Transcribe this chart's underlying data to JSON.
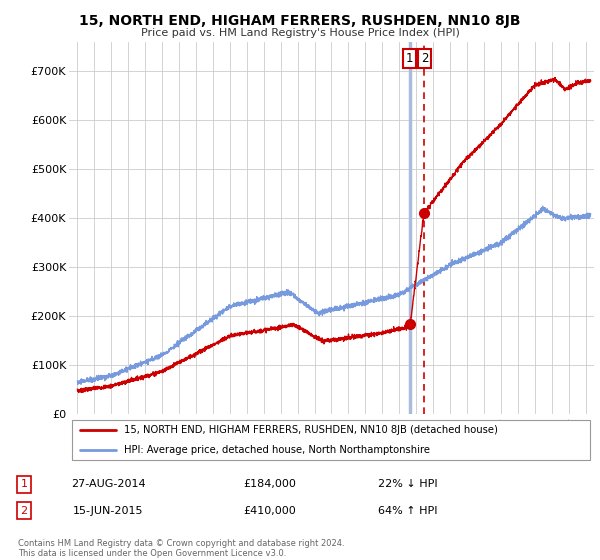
{
  "title": "15, NORTH END, HIGHAM FERRERS, RUSHDEN, NN10 8JB",
  "subtitle": "Price paid vs. HM Land Registry's House Price Index (HPI)",
  "ylabel_ticks": [
    "£0",
    "£100K",
    "£200K",
    "£300K",
    "£400K",
    "£500K",
    "£600K",
    "£700K"
  ],
  "ytick_values": [
    0,
    100000,
    200000,
    300000,
    400000,
    500000,
    600000,
    700000
  ],
  "ylim": [
    0,
    760000
  ],
  "xlim_start": 1994.5,
  "xlim_end": 2025.5,
  "hpi_color": "#7799dd",
  "price_color": "#cc0000",
  "sale1_x": 2014.65,
  "sale1_y": 184000,
  "sale2_x": 2015.45,
  "sale2_y": 410000,
  "vline1_color": "#aabbdd",
  "vline2_color": "#cc0000",
  "legend_line1": "15, NORTH END, HIGHAM FERRERS, RUSHDEN, NN10 8JB (detached house)",
  "legend_line2": "HPI: Average price, detached house, North Northamptonshire",
  "table_row1_date": "27-AUG-2014",
  "table_row1_price": "£184,000",
  "table_row1_hpi": "22% ↓ HPI",
  "table_row2_date": "15-JUN-2015",
  "table_row2_price": "£410,000",
  "table_row2_hpi": "64% ↑ HPI",
  "footer": "Contains HM Land Registry data © Crown copyright and database right 2024.\nThis data is licensed under the Open Government Licence v3.0.",
  "background_color": "#ffffff",
  "grid_color": "#cccccc"
}
